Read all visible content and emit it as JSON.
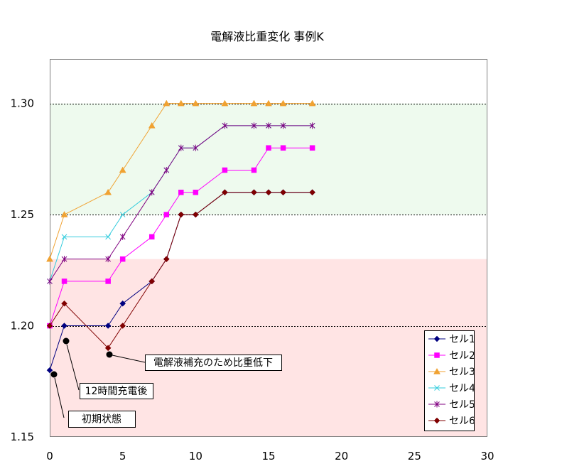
{
  "chart_data": {
    "type": "line",
    "title": "電解液比重変化 事例K",
    "xlabel": "",
    "ylabel": "",
    "xlim": [
      0,
      30
    ],
    "ylim": [
      1.15,
      1.32
    ],
    "x_ticks": [
      "0",
      "5",
      "10",
      "15",
      "20",
      "25",
      "30"
    ],
    "y_ticks": [
      "1.15",
      "1.20",
      "1.25",
      "1.30"
    ],
    "grid": true,
    "grid_style": "dotted",
    "gridlines_y": [
      1.2,
      1.25,
      1.3
    ],
    "bands": [
      {
        "from": 1.25,
        "to": 1.3,
        "color": "#EEFAEE"
      },
      {
        "from": 1.15,
        "to": 1.23,
        "color": "#FFE4E4"
      }
    ],
    "legend": "bottom-right",
    "x": [
      0,
      1,
      4,
      5,
      7,
      8,
      9,
      10,
      12,
      14,
      15,
      16,
      18
    ],
    "series": [
      {
        "name": "セル1",
        "color": "#000080",
        "marker": "diamond",
        "values": [
          1.18,
          1.2,
          1.2,
          1.21,
          1.22,
          1.23,
          1.25,
          1.25,
          1.26,
          1.26,
          1.26,
          1.26,
          1.26
        ]
      },
      {
        "name": "セル2",
        "color": "#FF00FF",
        "marker": "square",
        "values": [
          1.2,
          1.22,
          1.22,
          1.23,
          1.24,
          1.25,
          1.26,
          1.26,
          1.27,
          1.27,
          1.28,
          1.28,
          1.28
        ]
      },
      {
        "name": "セル3",
        "color": "#F0A232",
        "marker": "triangle",
        "values": [
          1.23,
          1.25,
          1.26,
          1.27,
          1.29,
          1.3,
          1.3,
          1.3,
          1.3,
          1.3,
          1.3,
          1.3,
          1.3
        ]
      },
      {
        "name": "セル4",
        "color": "#33CCDD",
        "marker": "x",
        "values": [
          1.22,
          1.24,
          1.24,
          1.25,
          1.26,
          1.27,
          1.28,
          1.28,
          1.29,
          1.29,
          1.29,
          1.29,
          1.29
        ]
      },
      {
        "name": "セル5",
        "color": "#800080",
        "marker": "asterisk",
        "values": [
          1.22,
          1.23,
          1.23,
          1.24,
          1.26,
          1.27,
          1.28,
          1.28,
          1.29,
          1.29,
          1.29,
          1.29,
          1.29
        ]
      },
      {
        "name": "セル6",
        "color": "#800000",
        "marker": "diamond",
        "values": [
          1.2,
          1.21,
          1.19,
          1.2,
          1.22,
          1.23,
          1.25,
          1.25,
          1.26,
          1.26,
          1.26,
          1.26,
          1.26
        ]
      }
    ],
    "annotations": [
      {
        "text": "初期状態"
      },
      {
        "text": "12時間充電後"
      },
      {
        "text": "電解液補充のため比重低下"
      }
    ]
  }
}
